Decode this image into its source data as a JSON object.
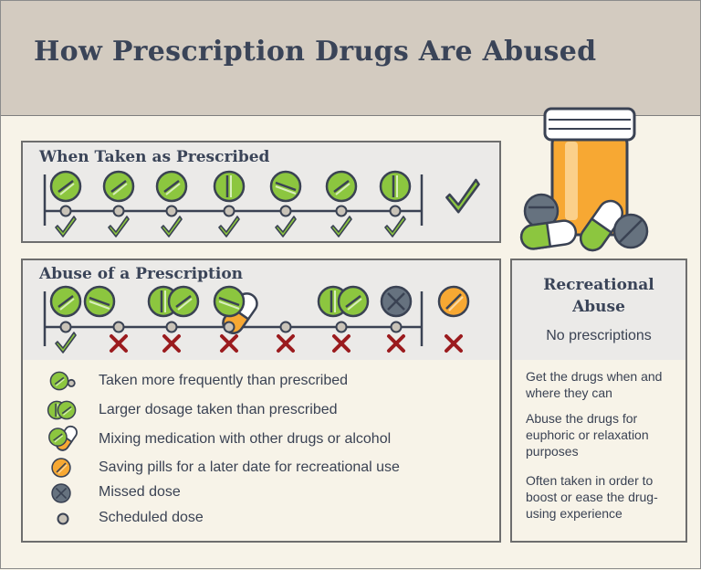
{
  "title": "How Prescription Drugs Are Abused",
  "prescribed": {
    "title": "When Taken as Prescribed"
  },
  "abuse": {
    "title": "Abuse of a Prescription"
  },
  "legend": [
    {
      "icon": "frequent-pill-icon",
      "label": "Taken more frequently than prescribed"
    },
    {
      "icon": "double-pill-icon",
      "label": "Larger dosage taken than prescribed"
    },
    {
      "icon": "mixed-pill-icon",
      "label": "Mixing medication with other drugs or alcohol"
    },
    {
      "icon": "orange-pill-icon",
      "label": "Saving pills for a later date for recreational use"
    },
    {
      "icon": "missed-dose-icon",
      "label": "Missed dose"
    },
    {
      "icon": "scheduled-dot-icon",
      "label": "Scheduled dose"
    }
  ],
  "recreational": {
    "title_line1": "Recreational",
    "title_line2": "Abuse",
    "subtitle": "No prescriptions",
    "items": [
      "Get the drugs when and where they can",
      "Abuse the drugs for euphoric or relaxation purposes",
      "Often taken in order to boost or ease the drug-using experience"
    ]
  },
  "colors": {
    "green": "#8cc63f",
    "orange": "#f7a833",
    "gray_pill": "#66727f",
    "red_x": "#9b1b1e",
    "outline": "#3a4253",
    "header": "#d3cbc0",
    "background": "#f7f3e8"
  }
}
